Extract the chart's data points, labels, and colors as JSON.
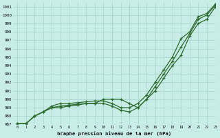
{
  "title": "Graphe pression niveau de la mer (hPa)",
  "xlim": [
    -0.5,
    23
  ],
  "ylim": [
    987,
    1001.5
  ],
  "xticks": [
    0,
    1,
    2,
    3,
    4,
    5,
    6,
    7,
    8,
    9,
    10,
    11,
    12,
    13,
    14,
    15,
    16,
    17,
    18,
    19,
    20,
    21,
    22,
    23
  ],
  "yticks": [
    987,
    988,
    989,
    990,
    991,
    992,
    993,
    994,
    995,
    996,
    997,
    998,
    999,
    1000,
    1001
  ],
  "bg_color": "#c8ece6",
  "grid_color": "#a8d8d0",
  "line_color": "#2d6a2d",
  "line1_x": [
    0,
    1,
    2,
    3,
    4,
    5,
    6,
    7,
    8,
    9,
    10,
    11,
    12,
    13,
    14,
    15,
    16,
    17,
    18,
    19,
    20,
    21,
    22,
    23
  ],
  "line1_y": [
    987.1,
    987.1,
    988.0,
    988.5,
    989.0,
    989.2,
    989.3,
    989.4,
    989.5,
    989.5,
    989.5,
    989.2,
    988.7,
    988.5,
    989.0,
    990.0,
    991.5,
    993.0,
    994.5,
    996.2,
    997.8,
    999.5,
    1000.0,
    1001.2
  ],
  "line2_x": [
    0,
    1,
    2,
    3,
    4,
    5,
    6,
    7,
    8,
    9,
    10,
    11,
    12,
    13,
    14,
    15,
    16,
    17,
    18,
    19,
    20,
    21,
    22,
    23
  ],
  "line2_y": [
    987.1,
    987.1,
    988.0,
    988.5,
    989.0,
    989.0,
    989.2,
    989.3,
    989.5,
    989.5,
    990.0,
    990.0,
    990.0,
    989.5,
    989.0,
    990.0,
    991.0,
    992.5,
    994.0,
    995.2,
    997.5,
    999.0,
    999.5,
    1001.0
  ],
  "line3_x": [
    0,
    1,
    2,
    3,
    4,
    5,
    6,
    7,
    8,
    9,
    10,
    11,
    12,
    13,
    14,
    15,
    16,
    17,
    18,
    19,
    20,
    21,
    22,
    23
  ],
  "line3_y": [
    987.1,
    987.1,
    988.0,
    988.5,
    989.2,
    989.5,
    989.5,
    989.6,
    989.7,
    989.8,
    989.8,
    989.5,
    989.0,
    989.0,
    989.5,
    990.5,
    992.0,
    993.5,
    995.0,
    997.2,
    998.0,
    999.8,
    1000.2,
    1001.3
  ]
}
